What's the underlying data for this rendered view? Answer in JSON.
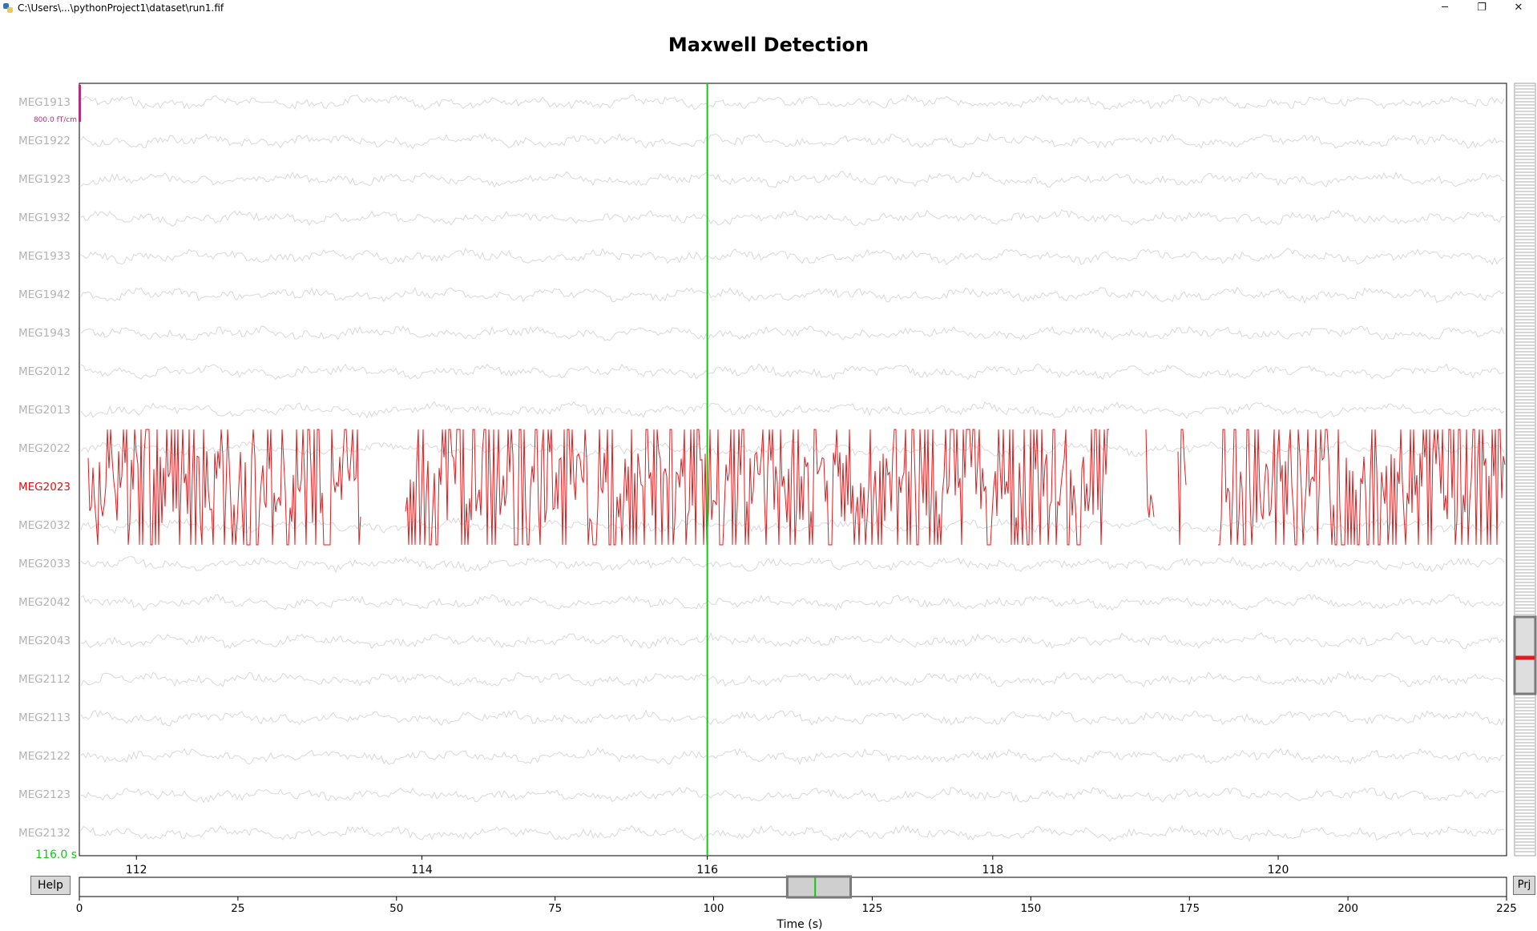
{
  "window": {
    "title": "C:\\Users\\...\\pythonProject1\\dataset\\run1.fif",
    "minimize": "─",
    "restore": "❐",
    "close": "✕"
  },
  "figure": {
    "title": "Maxwell Detection",
    "scale_label": "800.0 fT/cm",
    "time_readout": "116.0 s",
    "xlabel": "Time (s)"
  },
  "channels": [
    {
      "name": "MEG1913",
      "bad": false
    },
    {
      "name": "MEG1922",
      "bad": false
    },
    {
      "name": "MEG1923",
      "bad": false
    },
    {
      "name": "MEG1932",
      "bad": false
    },
    {
      "name": "MEG1933",
      "bad": false
    },
    {
      "name": "MEG1942",
      "bad": false
    },
    {
      "name": "MEG1943",
      "bad": false
    },
    {
      "name": "MEG2012",
      "bad": false
    },
    {
      "name": "MEG2013",
      "bad": false
    },
    {
      "name": "MEG2022",
      "bad": false
    },
    {
      "name": "MEG2023",
      "bad": true
    },
    {
      "name": "MEG2032",
      "bad": false
    },
    {
      "name": "MEG2033",
      "bad": false
    },
    {
      "name": "MEG2042",
      "bad": false
    },
    {
      "name": "MEG2043",
      "bad": false
    },
    {
      "name": "MEG2112",
      "bad": false
    },
    {
      "name": "MEG2113",
      "bad": false
    },
    {
      "name": "MEG2122",
      "bad": false
    },
    {
      "name": "MEG2123",
      "bad": false
    },
    {
      "name": "MEG2132",
      "bad": false
    }
  ],
  "chart_data": {
    "type": "line",
    "xlabel": "",
    "xlim": [
      111.6,
      121.6
    ],
    "xticks": [
      "112",
      "114",
      "116",
      "118",
      "120"
    ],
    "cursor_time": 116.0,
    "horizontal_scroll": {
      "xlabel": "Time (s)",
      "xlim": [
        0,
        225
      ],
      "ticks": [
        "0",
        "25",
        "50",
        "75",
        "100",
        "125",
        "150",
        "175",
        "200",
        "225"
      ],
      "view_window": [
        111.6,
        121.6
      ]
    }
  },
  "buttons": {
    "help": "Help",
    "projectors": "Prj"
  },
  "colors": {
    "good_trace": "#d8d8d8",
    "bad_trace": "#e41a1c",
    "cursor": "#14c814",
    "scale_bar": "#b0307a",
    "bad_label": "#e01010",
    "good_label": "#b2b2b2"
  }
}
